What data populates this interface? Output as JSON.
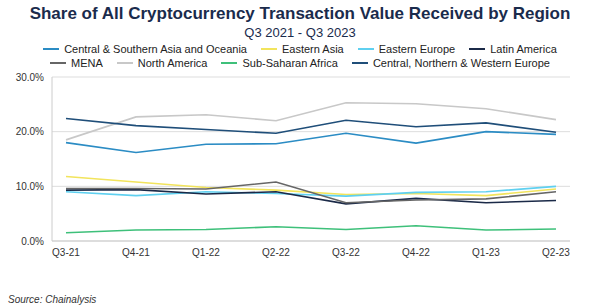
{
  "chart_data": {
    "type": "line",
    "title": "Share of All Cryptocurrency Transaction Value Received by Region",
    "subtitle": "Q3 2021 - Q3 2023",
    "source": "Source: Chainalysis",
    "categories": [
      "Q3-21",
      "Q4-21",
      "Q1-22",
      "Q2-22",
      "Q3-22",
      "Q4-22",
      "Q1-23",
      "Q2-23"
    ],
    "series": [
      {
        "name": "Central & Southern Asia and Oceania",
        "color": "#2b8cc4",
        "values": [
          18.0,
          16.2,
          17.7,
          17.8,
          19.7,
          17.9,
          20.0,
          19.5
        ]
      },
      {
        "name": "Eastern Asia",
        "color": "#f2e45c",
        "values": [
          11.8,
          10.8,
          9.8,
          9.3,
          8.5,
          8.7,
          8.3,
          9.5
        ]
      },
      {
        "name": "Eastern Europe",
        "color": "#5fd0f0",
        "values": [
          9.0,
          8.3,
          9.0,
          8.7,
          8.2,
          8.9,
          9.0,
          10.0
        ]
      },
      {
        "name": "Latin America",
        "color": "#1b2a48",
        "values": [
          9.3,
          9.4,
          8.6,
          9.0,
          6.8,
          7.8,
          7.0,
          7.4
        ]
      },
      {
        "name": "MENA",
        "color": "#666666",
        "values": [
          9.6,
          9.6,
          9.5,
          10.8,
          7.0,
          7.5,
          7.7,
          9.0
        ]
      },
      {
        "name": "North America",
        "color": "#c8c8c8",
        "values": [
          18.5,
          22.7,
          23.1,
          22.0,
          25.3,
          25.1,
          24.2,
          22.2
        ]
      },
      {
        "name": "Sub-Saharan Africa",
        "color": "#3ec07a",
        "values": [
          1.5,
          2.0,
          2.1,
          2.6,
          2.1,
          2.8,
          2.0,
          2.2
        ]
      },
      {
        "name": "Central, Northern & Western Europe",
        "color": "#1f4e79",
        "values": [
          22.4,
          21.1,
          20.4,
          19.7,
          22.1,
          20.9,
          21.6,
          19.9
        ]
      }
    ],
    "ylim": [
      0,
      30
    ],
    "yticks": [
      {
        "value": 0,
        "label": "0.0%"
      },
      {
        "value": 10,
        "label": "10.0%"
      },
      {
        "value": 20,
        "label": "20.0%"
      },
      {
        "value": 30,
        "label": "30.0%"
      }
    ],
    "grid": true,
    "legend": "top"
  }
}
